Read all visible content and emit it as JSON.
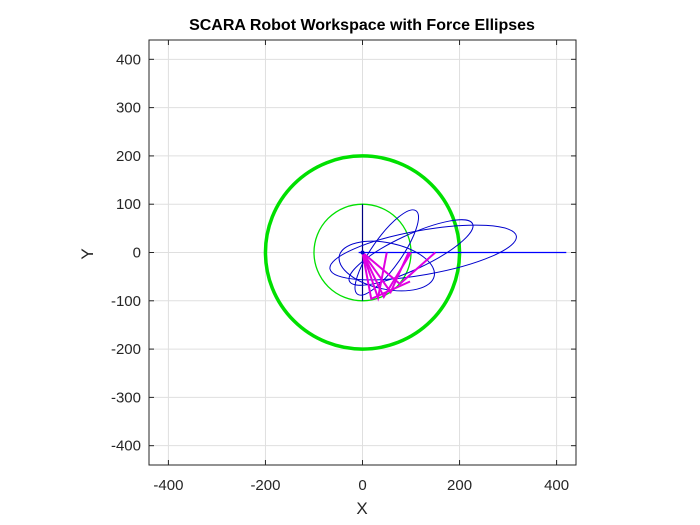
{
  "chart_data": {
    "type": "line",
    "title": "SCARA Robot Workspace with Force Ellipses",
    "xlabel": "X",
    "ylabel": "Y",
    "xlim": [
      -440,
      440
    ],
    "ylim": [
      -440,
      440
    ],
    "xticks": [
      -400,
      -200,
      0,
      200,
      400
    ],
    "yticks": [
      -400,
      -300,
      -200,
      -100,
      0,
      100,
      200,
      300,
      400
    ],
    "x_tick_labels": [
      "-400",
      "-200",
      "0",
      "200",
      "400"
    ],
    "y_tick_labels": [
      "-400",
      "-300",
      "-200",
      "-100",
      "0",
      "100",
      "200",
      "300",
      "400"
    ],
    "grid": true,
    "colors": {
      "workspace": "#00e000",
      "ellipse": "#0000cc",
      "links": "#e000e0",
      "axes_line": "#000080"
    },
    "workspace_circles": [
      {
        "center": [
          0,
          0
        ],
        "radius": 200,
        "thick": true
      },
      {
        "center": [
          0,
          0
        ],
        "radius": 100,
        "thick": false
      }
    ],
    "reference_lines": [
      {
        "x": [
          0,
          0
        ],
        "y": [
          -100,
          100
        ],
        "color": "#000080"
      },
      {
        "x": [
          -8,
          420
        ],
        "y": [
          0,
          0
        ],
        "color": "#0000ff"
      }
    ],
    "links": [
      {
        "elbow": [
          44,
          -92
        ],
        "end": [
          100,
          0
        ]
      },
      {
        "elbow": [
          32,
          -94
        ],
        "end": [
          50,
          0
        ]
      },
      {
        "elbow": [
          58,
          -82
        ],
        "end": [
          95,
          0
        ]
      },
      {
        "elbow": [
          77,
          -65
        ],
        "end": [
          150,
          0
        ]
      },
      {
        "elbow": [
          18,
          -96
        ],
        "end": [
          98,
          -60
        ]
      }
    ],
    "force_ellipses": [
      {
        "center": [
          125,
          0
        ],
        "semi_major": 195,
        "semi_minor": 46,
        "angle_deg": 10
      },
      {
        "center": [
          100,
          0
        ],
        "semi_major": 140,
        "semi_minor": 36,
        "angle_deg": 25
      },
      {
        "center": [
          50,
          0
        ],
        "semi_major": 105,
        "semi_minor": 31,
        "angle_deg": 55
      },
      {
        "center": [
          50,
          -28
        ],
        "semi_major": 100,
        "semi_minor": 48,
        "angle_deg": -12
      }
    ]
  }
}
